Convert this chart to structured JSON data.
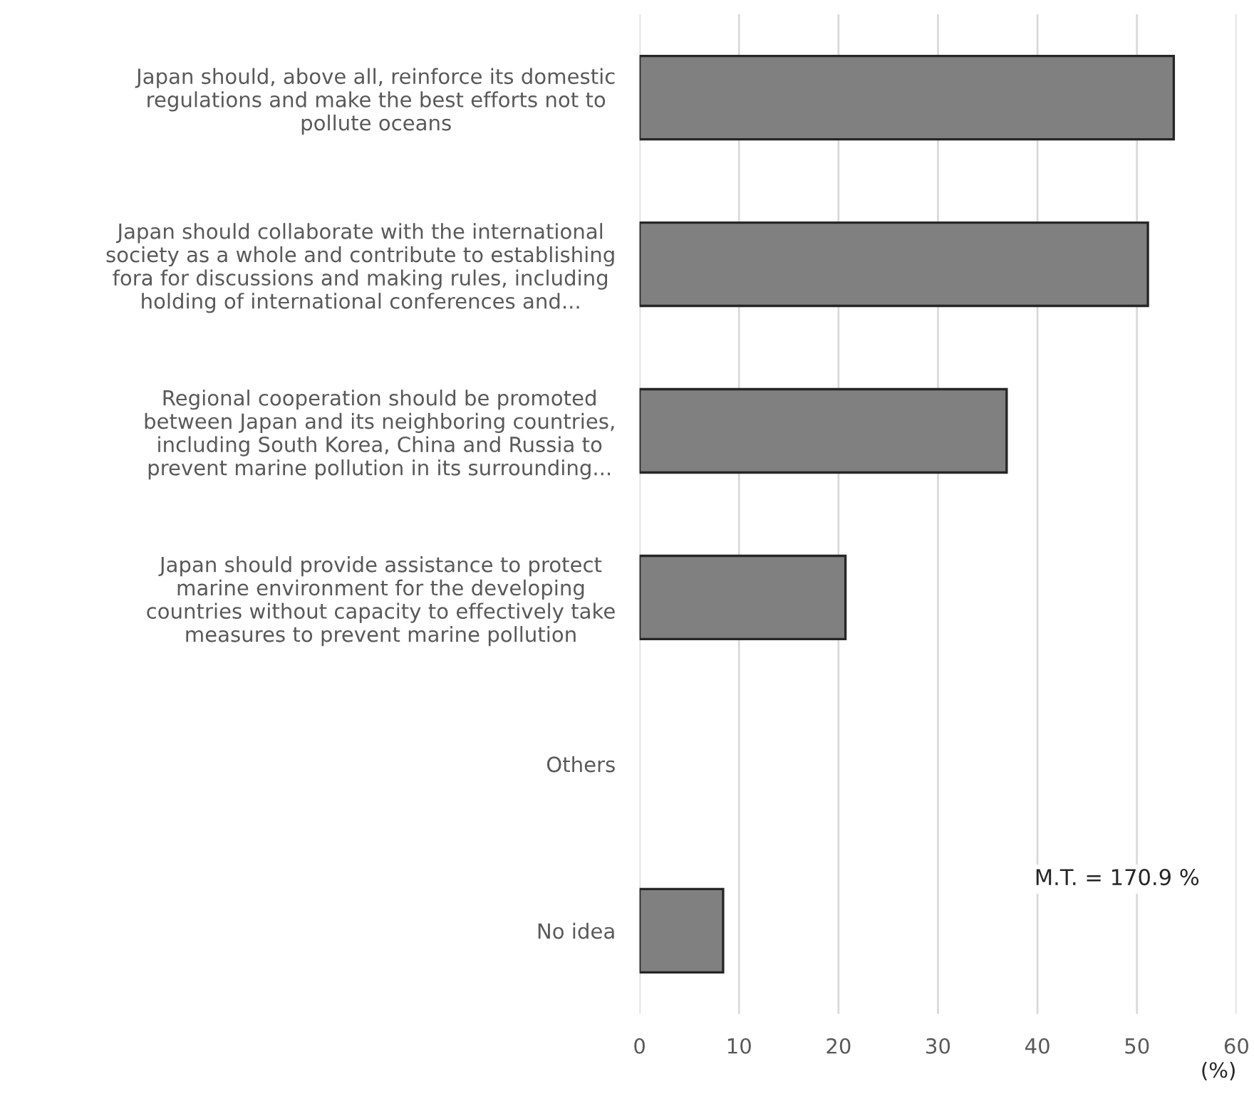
{
  "chart_data": {
    "type": "bar",
    "orientation": "horizontal",
    "categories": [
      "Japan should, above all, reinforce its domestic\nregulations and make the best efforts not to\npollute oceans",
      "Japan should collaborate with the international\nsociety as a whole and contribute to establishing\nfora for discussions and making rules, including\nholding of international conferences and...",
      "Regional cooperation should be promoted\nbetween Japan and its neighboring countries,\nincluding South Korea, China and Russia to\nprevent marine pollution in its surrounding...",
      "Japan should provide assistance to protect\nmarine environment for the developing\ncountries without capacity to effectively take\nmeasures to prevent marine pollution",
      "Others",
      "No idea"
    ],
    "values": [
      53.7,
      51.1,
      36.9,
      20.7,
      0,
      8.4
    ],
    "color": "#808080",
    "xlim": [
      0,
      60
    ],
    "xticks": [
      0,
      10,
      20,
      30,
      40,
      50,
      60
    ],
    "xlabel": "(%)",
    "annotations": [
      "M.T. = 170.9 %"
    ],
    "grid": "x",
    "legend": false
  }
}
